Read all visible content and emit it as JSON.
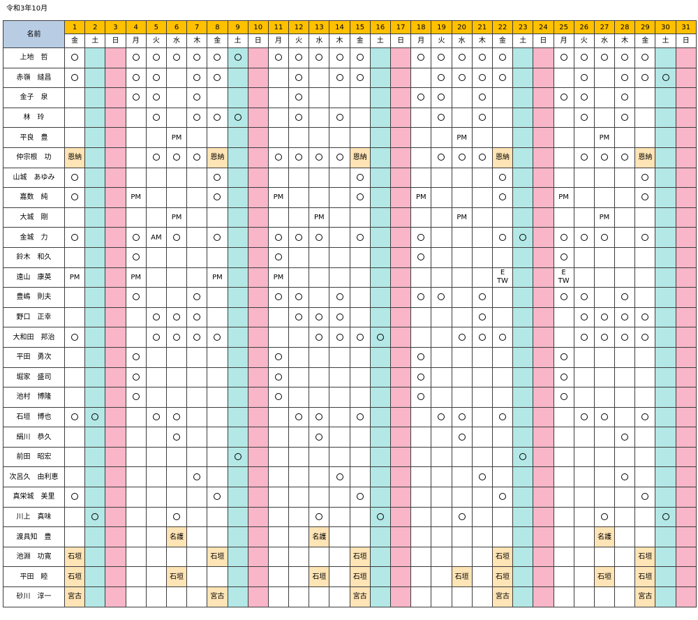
{
  "title": "令和3年10月",
  "header": {
    "name_label": "名前"
  },
  "colors": {
    "header_name_bg": "#b8cce4",
    "day_number_bg": "#ffc000",
    "saturday_bg": "#b3e8e6",
    "sunday_bg": "#f8b6c8",
    "tag_bg": "#ffe4b5"
  },
  "days": [
    {
      "num": "1",
      "wd": "金",
      "type": ""
    },
    {
      "num": "2",
      "wd": "土",
      "type": "sat"
    },
    {
      "num": "3",
      "wd": "日",
      "type": "sun"
    },
    {
      "num": "4",
      "wd": "月",
      "type": ""
    },
    {
      "num": "5",
      "wd": "火",
      "type": ""
    },
    {
      "num": "6",
      "wd": "水",
      "type": ""
    },
    {
      "num": "7",
      "wd": "木",
      "type": ""
    },
    {
      "num": "8",
      "wd": "金",
      "type": ""
    },
    {
      "num": "9",
      "wd": "土",
      "type": "sat"
    },
    {
      "num": "10",
      "wd": "日",
      "type": "sun"
    },
    {
      "num": "11",
      "wd": "月",
      "type": ""
    },
    {
      "num": "12",
      "wd": "火",
      "type": ""
    },
    {
      "num": "13",
      "wd": "水",
      "type": ""
    },
    {
      "num": "14",
      "wd": "木",
      "type": ""
    },
    {
      "num": "15",
      "wd": "金",
      "type": ""
    },
    {
      "num": "16",
      "wd": "土",
      "type": "sat"
    },
    {
      "num": "17",
      "wd": "日",
      "type": "sun"
    },
    {
      "num": "18",
      "wd": "月",
      "type": ""
    },
    {
      "num": "19",
      "wd": "火",
      "type": ""
    },
    {
      "num": "20",
      "wd": "水",
      "type": ""
    },
    {
      "num": "21",
      "wd": "木",
      "type": ""
    },
    {
      "num": "22",
      "wd": "金",
      "type": ""
    },
    {
      "num": "23",
      "wd": "土",
      "type": "sat"
    },
    {
      "num": "24",
      "wd": "日",
      "type": "sun"
    },
    {
      "num": "25",
      "wd": "月",
      "type": ""
    },
    {
      "num": "26",
      "wd": "火",
      "type": ""
    },
    {
      "num": "27",
      "wd": "水",
      "type": ""
    },
    {
      "num": "28",
      "wd": "木",
      "type": ""
    },
    {
      "num": "29",
      "wd": "金",
      "type": ""
    },
    {
      "num": "30",
      "wd": "土",
      "type": "sat"
    },
    {
      "num": "31",
      "wd": "日",
      "type": "sun"
    }
  ],
  "rows": [
    {
      "name": "上地　哲",
      "cells": {
        "1": "o",
        "4": "o",
        "5": "o",
        "6": "o",
        "7": "o",
        "8": "o",
        "9": "o",
        "11": "o",
        "12": "o",
        "13": "o",
        "14": "o",
        "15": "o",
        "18": "o",
        "19": "o",
        "20": "o",
        "21": "o",
        "22": "o",
        "25": "o",
        "26": "o",
        "27": "o",
        "28": "o",
        "29": "o"
      }
    },
    {
      "name": "赤嶺　縫昌",
      "cells": {
        "1": "o",
        "4": "o",
        "5": "o",
        "7": "o",
        "8": "o",
        "12": "o",
        "14": "o",
        "15": "o",
        "19": "o",
        "20": "o",
        "21": "o",
        "22": "o",
        "26": "o",
        "28": "o",
        "29": "o",
        "30": "o"
      }
    },
    {
      "name": "金子　泉",
      "cells": {
        "4": "o",
        "5": "o",
        "7": "o",
        "12": "o",
        "18": "o",
        "19": "o",
        "21": "o",
        "25": "o",
        "26": "o",
        "28": "o"
      }
    },
    {
      "name": "林　玲",
      "cells": {
        "5": "o",
        "7": "o",
        "8": "o",
        "9": "o",
        "12": "o",
        "14": "o",
        "19": "o",
        "21": "o",
        "26": "o",
        "28": "o"
      }
    },
    {
      "name": "平良　豊",
      "cells": {
        "6": "PM",
        "20": "PM",
        "27": "PM"
      }
    },
    {
      "name": "仲宗根　功",
      "cells": {
        "1": "恩納",
        "5": "o",
        "6": "o",
        "7": "o",
        "8": "恩納",
        "11": "o",
        "12": "o",
        "13": "o",
        "14": "o",
        "15": "恩納",
        "19": "o",
        "20": "o",
        "21": "o",
        "22": "恩納",
        "26": "o",
        "27": "o",
        "28": "o",
        "29": "恩納"
      }
    },
    {
      "name": "山城　あゆみ",
      "cells": {
        "1": "o",
        "8": "o",
        "15": "o",
        "22": "o",
        "29": "o"
      }
    },
    {
      "name": "嘉数　純",
      "cells": {
        "1": "o",
        "4": "PM",
        "8": "o",
        "11": "PM",
        "15": "o",
        "18": "PM",
        "22": "o",
        "25": "PM",
        "29": "o"
      }
    },
    {
      "name": "大城　剛",
      "cells": {
        "6": "PM",
        "13": "PM",
        "20": "PM",
        "27": "PM"
      }
    },
    {
      "name": "金城　力",
      "cells": {
        "1": "o",
        "4": "o",
        "5": "AM",
        "6": "o",
        "8": "o",
        "11": "o",
        "12": "o",
        "13": "o",
        "15": "o",
        "18": "o",
        "22": "o",
        "23": "o",
        "25": "o",
        "26": "o",
        "27": "o",
        "29": "o"
      }
    },
    {
      "name": "鈴木　和久",
      "cells": {
        "4": "o",
        "11": "o",
        "18": "o",
        "25": "o"
      }
    },
    {
      "name": "遠山　康英",
      "cells": {
        "1": "PM",
        "4": "PM",
        "8": "PM",
        "11": "PM",
        "22": "E TW",
        "25": "E TW"
      }
    },
    {
      "name": "豊嶋　則夫",
      "cells": {
        "4": "o",
        "7": "o",
        "11": "o",
        "12": "o",
        "14": "o",
        "18": "o",
        "19": "o",
        "21": "o",
        "25": "o",
        "26": "o",
        "28": "o"
      }
    },
    {
      "name": "野口　正幸",
      "cells": {
        "5": "o",
        "6": "o",
        "7": "o",
        "12": "o",
        "13": "o",
        "14": "o",
        "21": "o",
        "26": "o",
        "27": "o",
        "28": "o",
        "29": "o"
      }
    },
    {
      "name": "大和田　邦治",
      "cells": {
        "1": "o",
        "5": "o",
        "6": "o",
        "7": "o",
        "8": "o",
        "13": "o",
        "14": "o",
        "15": "o",
        "16": "o",
        "20": "o",
        "21": "o",
        "22": "o",
        "26": "o",
        "27": "o",
        "28": "o",
        "29": "o"
      }
    },
    {
      "name": "平田　勇次",
      "cells": {
        "4": "o",
        "11": "o",
        "18": "o",
        "25": "o"
      }
    },
    {
      "name": "堀家　盛司",
      "cells": {
        "4": "o",
        "11": "o",
        "18": "o",
        "25": "o"
      }
    },
    {
      "name": "池村　博隆",
      "cells": {
        "4": "o",
        "11": "o",
        "18": "o",
        "25": "o"
      }
    },
    {
      "name": "石垣　博也",
      "cells": {
        "1": "o",
        "2": "o",
        "5": "o",
        "6": "o",
        "12": "o",
        "13": "o",
        "15": "o",
        "19": "o",
        "20": "o",
        "22": "o",
        "26": "o",
        "27": "o",
        "29": "o"
      }
    },
    {
      "name": "絹川　恭久",
      "cells": {
        "6": "o",
        "13": "o",
        "20": "o",
        "28": "o"
      }
    },
    {
      "name": "前田　昭宏",
      "cells": {
        "9": "o",
        "23": "o"
      }
    },
    {
      "name": "次呂久　由利恵",
      "cells": {
        "7": "o",
        "14": "o",
        "21": "o",
        "28": "o"
      }
    },
    {
      "name": "真栄城　美里",
      "cells": {
        "1": "o",
        "8": "o",
        "15": "o",
        "22": "o",
        "29": "o"
      }
    },
    {
      "name": "川上　真味",
      "cells": {
        "2": "o",
        "6": "o",
        "13": "o",
        "16": "o",
        "20": "o",
        "27": "o",
        "30": "o"
      }
    },
    {
      "name": "渡具知　豊",
      "cells": {
        "6": "名護",
        "13": "名護",
        "27": "名護"
      }
    },
    {
      "name": "池淵　功寛",
      "cells": {
        "1": "石垣",
        "8": "石垣",
        "15": "石垣",
        "22": "石垣",
        "29": "石垣"
      }
    },
    {
      "name": "平田　睦",
      "cells": {
        "1": "石垣",
        "6": "石垣",
        "13": "石垣",
        "15": "石垣",
        "20": "石垣",
        "22": "石垣",
        "27": "石垣",
        "29": "石垣"
      }
    },
    {
      "name": "砂川　淳一",
      "cells": {
        "1": "宮古",
        "8": "宮古",
        "15": "宮古",
        "22": "宮古",
        "29": "宮古"
      }
    }
  ]
}
